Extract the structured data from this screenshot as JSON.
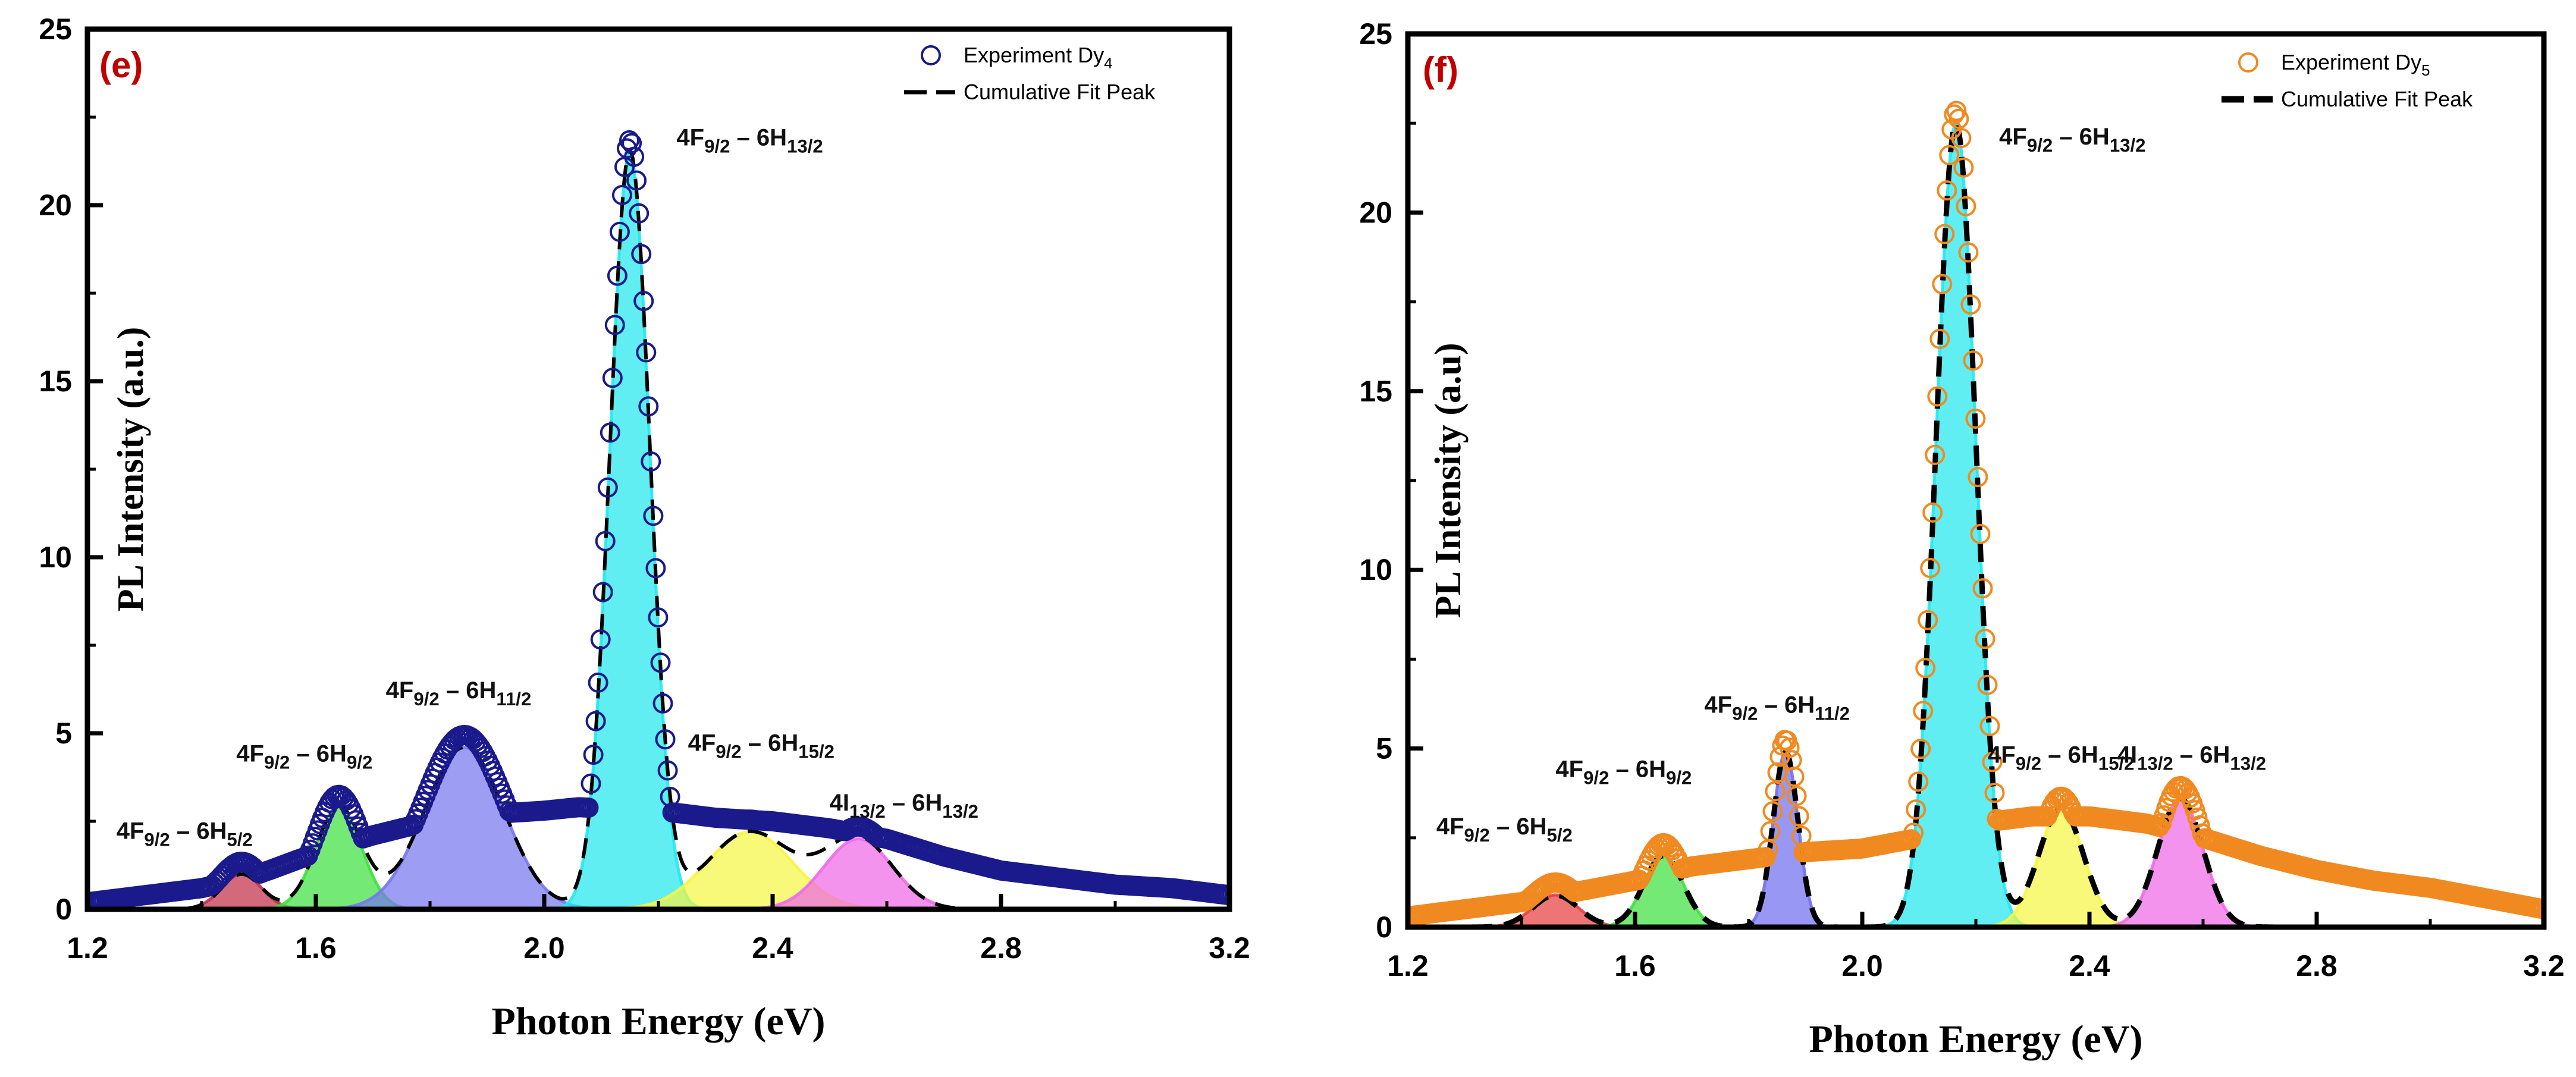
{
  "chart_data": [
    {
      "type": "scatter",
      "panel_label": "(e)",
      "xlabel": "Photon Energy (eV)",
      "ylabel": "PL Intensity (a.u.)",
      "xlim": [
        1.2,
        3.2
      ],
      "ylim": [
        0,
        25
      ],
      "xticks": [
        1.2,
        1.6,
        2.0,
        2.4,
        2.8,
        3.2
      ],
      "xtick_labels": [
        "1.2",
        "1.6",
        "2.0",
        "2.4",
        "2.8",
        "3.2"
      ],
      "yticks": [
        0,
        5,
        10,
        15,
        20,
        25
      ],
      "ytick_labels": [
        "0",
        "5",
        "10",
        "15",
        "20",
        "25"
      ],
      "legend": {
        "position": "top-right",
        "entries": [
          {
            "label": "Experiment Dy",
            "sub": "4",
            "marker": "circle"
          },
          {
            "label": "Cumulative Fit Peak",
            "marker": "dash"
          }
        ]
      },
      "colors": {
        "marker": "#1a1a8c",
        "fit": "#000000",
        "panel_label": "#c00000"
      },
      "baseline": [
        [
          1.2,
          0.2
        ],
        [
          1.3,
          0.4
        ],
        [
          1.4,
          0.6
        ],
        [
          1.5,
          1.0
        ],
        [
          1.6,
          1.6
        ],
        [
          1.7,
          2.1
        ],
        [
          1.8,
          2.5
        ],
        [
          1.9,
          2.7
        ],
        [
          2.0,
          2.8
        ],
        [
          2.06,
          2.9
        ],
        [
          2.2,
          2.8
        ],
        [
          2.3,
          2.6
        ],
        [
          2.4,
          2.5
        ],
        [
          2.5,
          2.3
        ],
        [
          2.6,
          2.0
        ],
        [
          2.7,
          1.5
        ],
        [
          2.8,
          1.1
        ],
        [
          2.9,
          0.9
        ],
        [
          3.0,
          0.7
        ],
        [
          3.1,
          0.6
        ],
        [
          3.2,
          0.4
        ]
      ],
      "peaks": [
        {
          "label": "4F9/2 – 6H5/2",
          "center": 1.47,
          "amplitude": 1.0,
          "sigma": 0.035,
          "color": "#c0304a",
          "label_pos": [
            1.37,
            2.0
          ]
        },
        {
          "label": "4F9/2 – 6H9/2",
          "center": 1.64,
          "amplitude": 2.9,
          "sigma": 0.04,
          "color": "#40e040",
          "label_pos": [
            1.58,
            4.2
          ]
        },
        {
          "label": "4F9/2 – 6H11/2",
          "center": 1.86,
          "amplitude": 4.6,
          "sigma": 0.07,
          "color": "#7777ee",
          "label_pos": [
            1.85,
            6.0
          ]
        },
        {
          "label": "4F9/2 – 6H13/2",
          "center": 2.15,
          "amplitude": 21.5,
          "sigma": 0.035,
          "color": "#22e8ee",
          "label_pos": [
            2.36,
            21.7
          ]
        },
        {
          "label": "4F9/2 – 6H15/2",
          "center": 2.36,
          "amplitude": 2.2,
          "sigma": 0.075,
          "color": "#f5f545",
          "label_pos": [
            2.38,
            4.5
          ]
        },
        {
          "label": "4I13/2 – 6H13/2",
          "center": 2.55,
          "amplitude": 2.0,
          "sigma": 0.06,
          "color": "#f06ae8",
          "label_pos": [
            2.63,
            2.8
          ]
        }
      ]
    },
    {
      "type": "scatter",
      "panel_label": "(f)",
      "xlabel": "Photon Energy (eV)",
      "ylabel": "PL Intensity (a.u)",
      "xlim": [
        1.2,
        3.2
      ],
      "ylim": [
        0,
        25
      ],
      "xticks": [
        1.2,
        1.6,
        2.0,
        2.4,
        2.8,
        3.2
      ],
      "xtick_labels": [
        "1.2",
        "1.6",
        "2.0",
        "2.4",
        "2.8",
        "3.2"
      ],
      "yticks": [
        0,
        5,
        10,
        15,
        20,
        25
      ],
      "ytick_labels": [
        "0",
        "5",
        "10",
        "15",
        "20",
        "25"
      ],
      "legend": {
        "position": "top-right",
        "entries": [
          {
            "label": "Experiment Dy",
            "sub": "5",
            "marker": "circle"
          },
          {
            "label": "Cumulative Fit Peak",
            "marker": "dash"
          }
        ]
      },
      "colors": {
        "marker": "#f08a20",
        "fit": "#000000",
        "panel_label": "#c00000"
      },
      "baseline": [
        [
          1.2,
          0.3
        ],
        [
          1.3,
          0.5
        ],
        [
          1.4,
          0.7
        ],
        [
          1.5,
          1.0
        ],
        [
          1.6,
          1.3
        ],
        [
          1.7,
          1.7
        ],
        [
          1.8,
          1.9
        ],
        [
          1.9,
          2.1
        ],
        [
          2.0,
          2.2
        ],
        [
          2.1,
          2.5
        ],
        [
          2.2,
          2.9
        ],
        [
          2.3,
          3.1
        ],
        [
          2.4,
          3.1
        ],
        [
          2.5,
          2.9
        ],
        [
          2.6,
          2.5
        ],
        [
          2.7,
          2.0
        ],
        [
          2.8,
          1.6
        ],
        [
          2.9,
          1.3
        ],
        [
          3.0,
          1.1
        ],
        [
          3.1,
          0.8
        ],
        [
          3.2,
          0.5
        ]
      ],
      "peaks": [
        {
          "label": "4F9/2 – 6H5/2",
          "center": 1.46,
          "amplitude": 0.9,
          "sigma": 0.04,
          "color": "#e84040",
          "label_pos": [
            1.37,
            2.6
          ]
        },
        {
          "label": "4F9/2 – 6H9/2",
          "center": 1.65,
          "amplitude": 2.0,
          "sigma": 0.035,
          "color": "#40e040",
          "label_pos": [
            1.58,
            4.2
          ]
        },
        {
          "label": "4F9/2 – 6H11/2",
          "center": 1.865,
          "amplitude": 4.9,
          "sigma": 0.022,
          "color": "#7070f0",
          "label_pos": [
            1.85,
            6.0
          ]
        },
        {
          "label": "4F9/2 – 6H13/2",
          "center": 2.165,
          "amplitude": 22.5,
          "sigma": 0.035,
          "color": "#22e8ee",
          "label_pos": [
            2.37,
            21.9
          ]
        },
        {
          "label": "4F9/2 – 6H15/2",
          "center": 2.35,
          "amplitude": 3.3,
          "sigma": 0.04,
          "color": "#f5f545",
          "label_pos": [
            2.35,
            4.6
          ]
        },
        {
          "label": "4I13/2 – 6H13/2",
          "center": 2.56,
          "amplitude": 3.6,
          "sigma": 0.04,
          "color": "#f06ae8",
          "label_pos": [
            2.58,
            4.6
          ]
        }
      ]
    }
  ]
}
